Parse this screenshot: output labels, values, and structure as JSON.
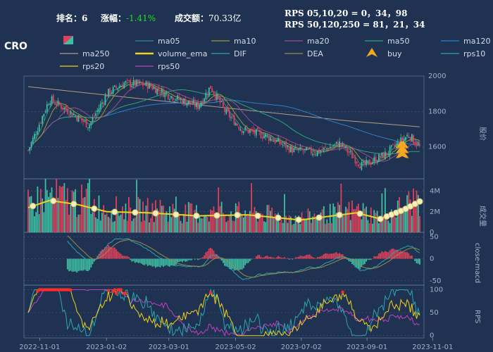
{
  "header": {
    "rank_label": "排名：",
    "rank_value": "6",
    "change_label": "涨幅：",
    "change_value": "-1.41%",
    "turnover_label": "成交额：",
    "turnover_value": "70.33亿",
    "rps_line1": "RPS 05,10,20 = 0，34，98",
    "rps_line2": "RPS 50,120,250 = 81，21，34",
    "symbol": "CRO",
    "change_color": "#22dd22"
  },
  "legend": [
    {
      "label": "ma05",
      "color": "#2e8b8b",
      "kind": "line"
    },
    {
      "label": "ma10",
      "color": "#9a9a3a",
      "kind": "line"
    },
    {
      "label": "ma20",
      "color": "#a24a8e",
      "kind": "line"
    },
    {
      "label": "ma50",
      "color": "#2aa67a",
      "kind": "line"
    },
    {
      "label": "ma120",
      "color": "#2f7fc9",
      "kind": "line"
    },
    {
      "label": "ma250",
      "color": "#b89a8a",
      "kind": "line"
    },
    {
      "label": "volume_ema",
      "color": "#f2d21b",
      "kind": "line"
    },
    {
      "label": "DIF",
      "color": "#2aa6b0",
      "kind": "line"
    },
    {
      "label": "DEA",
      "color": "#9a8a4a",
      "kind": "line"
    },
    {
      "label": "buy",
      "color": "#f5a623",
      "kind": "marker"
    },
    {
      "label": "rps10",
      "color": "#2aa6b0",
      "kind": "line"
    },
    {
      "label": "rps20",
      "color": "#f2d21b",
      "kind": "line"
    },
    {
      "label": "rps50",
      "color": "#c040c0",
      "kind": "line"
    }
  ],
  "colors": {
    "up": "#3fbfa3",
    "down": "#e0405a",
    "background": "#1f3251",
    "grid": "#4a5e7e"
  },
  "chart_data": [
    {
      "type": "candlestick",
      "panel": "price",
      "ylabel": "股价",
      "yticks": [
        1600,
        1800,
        2000
      ],
      "ylim": [
        1420,
        2000
      ],
      "x_dates": [
        "2022-11-01",
        "2023-01-02",
        "2023-03-01",
        "2023-05-02",
        "2023-07-02",
        "2023-09-01",
        "2023-11-01"
      ],
      "close_keypoints": [
        {
          "date": "2022-11-01",
          "value": 1580
        },
        {
          "date": "2022-11-20",
          "value": 1870
        },
        {
          "date": "2022-12-10",
          "value": 1790
        },
        {
          "date": "2022-12-25",
          "value": 1720
        },
        {
          "date": "2023-01-10",
          "value": 1900
        },
        {
          "date": "2023-01-25",
          "value": 1960
        },
        {
          "date": "2023-02-15",
          "value": 1950
        },
        {
          "date": "2023-03-10",
          "value": 1880
        },
        {
          "date": "2023-04-01",
          "value": 1830
        },
        {
          "date": "2023-04-12",
          "value": 1940
        },
        {
          "date": "2023-04-25",
          "value": 1800
        },
        {
          "date": "2023-05-10",
          "value": 1700
        },
        {
          "date": "2023-06-01",
          "value": 1660
        },
        {
          "date": "2023-06-25",
          "value": 1580
        },
        {
          "date": "2023-07-15",
          "value": 1570
        },
        {
          "date": "2023-08-05",
          "value": 1620
        },
        {
          "date": "2023-08-25",
          "value": 1490
        },
        {
          "date": "2023-09-15",
          "value": 1560
        },
        {
          "date": "2023-10-05",
          "value": 1670
        },
        {
          "date": "2023-10-15",
          "value": 1600
        }
      ],
      "buy_signal_dates": [
        "2023-10-08",
        "2023-10-09",
        "2023-10-10"
      ]
    },
    {
      "type": "bar",
      "panel": "volume",
      "ylabel": "成交量",
      "yticks_labels": [
        "0",
        "2M",
        "4M"
      ],
      "yticks": [
        0,
        2000000,
        4000000
      ],
      "ylim": [
        0,
        5200000
      ],
      "ema_keypoints": [
        {
          "date": "2022-11-01",
          "value": 2400000
        },
        {
          "date": "2022-11-20",
          "value": 3100000
        },
        {
          "date": "2022-12-15",
          "value": 2700000
        },
        {
          "date": "2023-01-10",
          "value": 2000000
        },
        {
          "date": "2023-02-15",
          "value": 1900000
        },
        {
          "date": "2023-04-01",
          "value": 1600000
        },
        {
          "date": "2023-05-15",
          "value": 1700000
        },
        {
          "date": "2023-07-01",
          "value": 1200000
        },
        {
          "date": "2023-08-20",
          "value": 1900000
        },
        {
          "date": "2023-09-10",
          "value": 1300000
        },
        {
          "date": "2023-10-01",
          "value": 2200000
        },
        {
          "date": "2023-10-15",
          "value": 3000000
        }
      ]
    },
    {
      "type": "bar",
      "panel": "macd",
      "ylabel": "close-macd",
      "yticks": [
        -50,
        0,
        50
      ],
      "ylim": [
        -60,
        60
      ]
    },
    {
      "type": "line",
      "panel": "rps",
      "ylabel": "RPS",
      "yticks": [
        0,
        50,
        100
      ],
      "ylim": [
        -5,
        110
      ]
    }
  ]
}
